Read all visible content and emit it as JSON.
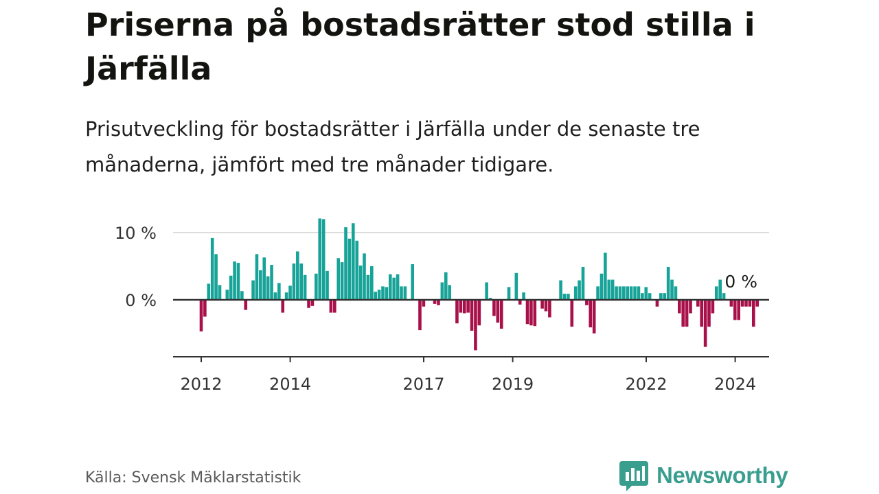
{
  "header": {
    "title": "Priserna på bostadsrätter stod stilla i Järfälla",
    "subtitle": "Prisutveckling för bostadsrätter i Järfälla under de senaste tre månaderna, jämfört med tre månader tidigare."
  },
  "footer": {
    "source": "Källa: Svensk Mäklarstatistik",
    "brand": "Newsworthy"
  },
  "colors": {
    "positive": "#17a398",
    "negative": "#a8104a",
    "grid": "#dddddd",
    "axis": "#333333"
  },
  "chart_data": {
    "type": "bar",
    "title": "Priserna på bostadsrätter stod stilla i Järfälla",
    "ylabel": "",
    "xlabel": "",
    "ylim": [
      -8.5,
      12.3
    ],
    "yticks": [
      {
        "value": 0,
        "label": "0 %"
      },
      {
        "value": 10,
        "label": "10 %"
      }
    ],
    "xticks": [
      {
        "x": 2012.0,
        "label": "2012"
      },
      {
        "x": 2014.0,
        "label": "2014"
      },
      {
        "x": 2017.0,
        "label": "2017"
      },
      {
        "x": 2019.0,
        "label": "2019"
      },
      {
        "x": 2022.0,
        "label": "2022"
      },
      {
        "x": 2024.0,
        "label": "2024"
      }
    ],
    "x_start": 2012.0,
    "x_step": 0.0833,
    "annotation": {
      "label": "0 %",
      "x": 2024.04,
      "value": 0
    },
    "values": [
      -4.7,
      -2.5,
      2.4,
      9.2,
      6.8,
      2.2,
      0.0,
      1.5,
      3.6,
      5.7,
      5.5,
      1.3,
      -1.5,
      0.0,
      2.9,
      6.8,
      4.4,
      6.3,
      3.5,
      5.2,
      1.1,
      2.5,
      -1.9,
      1.1,
      2.1,
      5.4,
      7.2,
      5.4,
      3.7,
      -1.2,
      -0.9,
      3.9,
      12.1,
      12.0,
      4.3,
      -1.9,
      -1.9,
      6.2,
      5.6,
      10.8,
      9.1,
      11.4,
      8.8,
      5.1,
      6.9,
      3.7,
      5.0,
      1.2,
      1.5,
      2.0,
      1.9,
      3.8,
      3.3,
      3.8,
      2.0,
      2.0,
      0.0,
      5.3,
      0.0,
      -4.5,
      -1.0,
      0.0,
      0.0,
      -0.6,
      -0.8,
      2.6,
      4.1,
      2.2,
      0.0,
      -3.5,
      -1.9,
      -2.0,
      -1.9,
      -4.6,
      -7.5,
      -3.8,
      0.0,
      2.6,
      0.3,
      -2.4,
      -3.4,
      -4.3,
      0.0,
      1.9,
      0.0,
      4.0,
      -0.7,
      1.1,
      -3.6,
      -3.8,
      -3.9,
      0.0,
      -1.3,
      -1.7,
      -2.6,
      0.0,
      0.0,
      2.9,
      0.9,
      0.9,
      -4.0,
      2.0,
      2.9,
      4.9,
      -0.8,
      -4.1,
      -5.0,
      2.0,
      3.9,
      7.0,
      3.0,
      3.0,
      2.0,
      2.0,
      2.0,
      2.0,
      2.0,
      2.0,
      2.0,
      1.0,
      1.9,
      1.0,
      0.0,
      -1.0,
      1.0,
      1.0,
      4.9,
      3.0,
      2.0,
      -2.0,
      -4.0,
      -4.0,
      -2.0,
      0.0,
      -1.0,
      -4.0,
      -7.0,
      -4.0,
      -2.0,
      2.0,
      3.0,
      1.0,
      0.0,
      -1.0,
      -3.0,
      -3.0,
      -1.0,
      -1.0,
      -1.0,
      -4.0,
      -1.0,
      0.0
    ]
  }
}
